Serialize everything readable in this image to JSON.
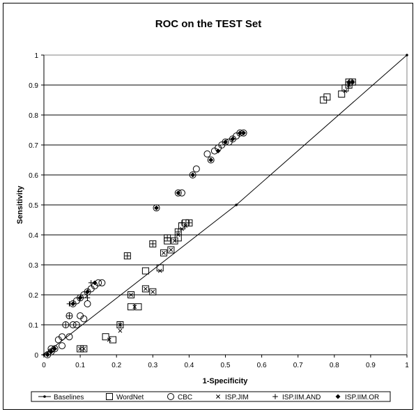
{
  "chart_data": {
    "type": "scatter",
    "title": "ROC on the TEST Set",
    "xlabel": "1-Specificity",
    "ylabel": "Sensitivity",
    "xlim": [
      0,
      1
    ],
    "ylim": [
      0,
      1
    ],
    "x_ticks": [
      "0",
      "0.1",
      "0.2",
      "0.3",
      "0.4",
      "0.5",
      "0.6",
      "0.7",
      "0.8",
      "0.9",
      "1"
    ],
    "y_ticks": [
      "0",
      "0.1",
      "0.2",
      "0.3",
      "0.4",
      "0.5",
      "0.6",
      "0.7",
      "0.8",
      "0.9",
      "1"
    ],
    "grid": "horizontal",
    "legend_position": "bottom",
    "series": [
      {
        "name": "Baselines",
        "marker": "line-dot",
        "points": [
          [
            0,
            0
          ],
          [
            0.53,
            0.5
          ],
          [
            1,
            1
          ]
        ]
      },
      {
        "name": "WordNet",
        "marker": "square",
        "points": [
          [
            0.1,
            0.02
          ],
          [
            0.11,
            0.02
          ],
          [
            0.17,
            0.06
          ],
          [
            0.19,
            0.05
          ],
          [
            0.21,
            0.1
          ],
          [
            0.23,
            0.33
          ],
          [
            0.24,
            0.2
          ],
          [
            0.24,
            0.16
          ],
          [
            0.26,
            0.16
          ],
          [
            0.28,
            0.22
          ],
          [
            0.28,
            0.28
          ],
          [
            0.3,
            0.37
          ],
          [
            0.3,
            0.21
          ],
          [
            0.32,
            0.29
          ],
          [
            0.33,
            0.34
          ],
          [
            0.34,
            0.38
          ],
          [
            0.34,
            0.39
          ],
          [
            0.35,
            0.35
          ],
          [
            0.36,
            0.38
          ],
          [
            0.37,
            0.41
          ],
          [
            0.37,
            0.39
          ],
          [
            0.38,
            0.43
          ],
          [
            0.39,
            0.44
          ],
          [
            0.4,
            0.44
          ],
          [
            0.77,
            0.85
          ],
          [
            0.78,
            0.86
          ],
          [
            0.82,
            0.87
          ],
          [
            0.83,
            0.89
          ],
          [
            0.84,
            0.9
          ],
          [
            0.84,
            0.91
          ],
          [
            0.85,
            0.91
          ]
        ]
      },
      {
        "name": "CBC",
        "marker": "circle",
        "points": [
          [
            0.01,
            0
          ],
          [
            0.02,
            0.01
          ],
          [
            0.02,
            0.02
          ],
          [
            0.03,
            0.02
          ],
          [
            0.04,
            0.05
          ],
          [
            0.05,
            0.03
          ],
          [
            0.05,
            0.06
          ],
          [
            0.06,
            0.1
          ],
          [
            0.07,
            0.06
          ],
          [
            0.07,
            0.13
          ],
          [
            0.08,
            0.1
          ],
          [
            0.08,
            0.17
          ],
          [
            0.09,
            0.18
          ],
          [
            0.09,
            0.1
          ],
          [
            0.1,
            0.13
          ],
          [
            0.1,
            0.19
          ],
          [
            0.11,
            0.2
          ],
          [
            0.11,
            0.12
          ],
          [
            0.12,
            0.21
          ],
          [
            0.12,
            0.17
          ],
          [
            0.13,
            0.22
          ],
          [
            0.14,
            0.23
          ],
          [
            0.15,
            0.24
          ],
          [
            0.16,
            0.24
          ],
          [
            0.31,
            0.49
          ],
          [
            0.37,
            0.54
          ],
          [
            0.38,
            0.54
          ],
          [
            0.41,
            0.6
          ],
          [
            0.42,
            0.62
          ],
          [
            0.45,
            0.67
          ],
          [
            0.46,
            0.65
          ],
          [
            0.47,
            0.68
          ],
          [
            0.48,
            0.69
          ],
          [
            0.49,
            0.7
          ],
          [
            0.5,
            0.71
          ],
          [
            0.51,
            0.71
          ],
          [
            0.52,
            0.72
          ],
          [
            0.53,
            0.73
          ],
          [
            0.54,
            0.74
          ],
          [
            0.55,
            0.74
          ]
        ]
      },
      {
        "name": "ISP.JIM",
        "marker": "x",
        "points": [
          [
            0.1,
            0.02
          ],
          [
            0.11,
            0.02
          ],
          [
            0.18,
            0.05
          ],
          [
            0.21,
            0.08
          ],
          [
            0.21,
            0.1
          ],
          [
            0.24,
            0.2
          ],
          [
            0.25,
            0.16
          ],
          [
            0.28,
            0.22
          ],
          [
            0.3,
            0.21
          ],
          [
            0.32,
            0.28
          ],
          [
            0.33,
            0.34
          ],
          [
            0.35,
            0.35
          ],
          [
            0.36,
            0.38
          ],
          [
            0.37,
            0.4
          ],
          [
            0.38,
            0.42
          ],
          [
            0.39,
            0.43
          ],
          [
            0.83,
            0.88
          ],
          [
            0.84,
            0.9
          ],
          [
            0.85,
            0.91
          ]
        ]
      },
      {
        "name": "ISP.IIM.AND",
        "marker": "plus",
        "points": [
          [
            0.06,
            0.1
          ],
          [
            0.07,
            0.13
          ],
          [
            0.07,
            0.17
          ],
          [
            0.1,
            0.19
          ],
          [
            0.12,
            0.19
          ],
          [
            0.13,
            0.24
          ],
          [
            0.21,
            0.1
          ],
          [
            0.23,
            0.33
          ],
          [
            0.3,
            0.37
          ],
          [
            0.34,
            0.39
          ],
          [
            0.37,
            0.41
          ],
          [
            0.38,
            0.44
          ],
          [
            0.4,
            0.44
          ],
          [
            0.84,
            0.9
          ],
          [
            0.85,
            0.91
          ]
        ]
      },
      {
        "name": "ISP.IIM.OR",
        "marker": "diamond",
        "points": [
          [
            0.01,
            0
          ],
          [
            0.02,
            0.01
          ],
          [
            0.03,
            0.02
          ],
          [
            0.08,
            0.17
          ],
          [
            0.1,
            0.19
          ],
          [
            0.12,
            0.21
          ],
          [
            0.14,
            0.24
          ],
          [
            0.31,
            0.49
          ],
          [
            0.37,
            0.54
          ],
          [
            0.41,
            0.6
          ],
          [
            0.46,
            0.65
          ],
          [
            0.48,
            0.68
          ],
          [
            0.5,
            0.71
          ],
          [
            0.52,
            0.72
          ],
          [
            0.54,
            0.74
          ],
          [
            0.55,
            0.74
          ],
          [
            0.84,
            0.91
          ],
          [
            0.85,
            0.91
          ]
        ]
      }
    ]
  }
}
